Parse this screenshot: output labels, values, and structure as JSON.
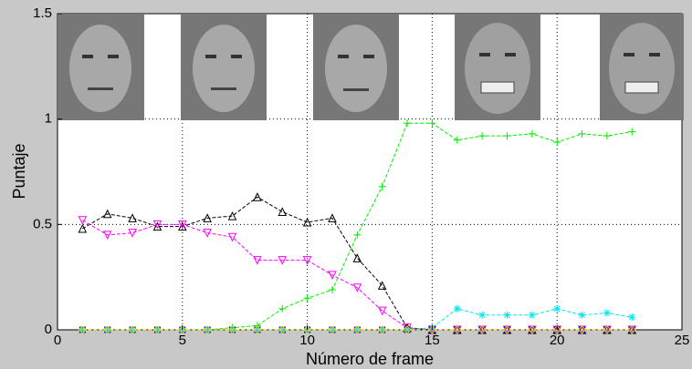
{
  "chart_data": {
    "type": "line",
    "x_label": "Número de frame",
    "y_label": "Puntaje",
    "x": [
      1,
      2,
      3,
      4,
      5,
      6,
      7,
      8,
      9,
      10,
      11,
      12,
      13,
      14,
      15,
      16,
      17,
      18,
      19,
      20,
      21,
      22,
      23
    ],
    "xlim": [
      0,
      25
    ],
    "xticks": [
      0,
      5,
      10,
      15,
      20,
      25
    ],
    "ylim": [
      0,
      1.5
    ],
    "yticks": [
      0,
      0.5,
      1,
      1.5
    ],
    "grid": true,
    "series": [
      {
        "color": "#000000",
        "marker": "triangle-up",
        "values": [
          0.48,
          0.55,
          0.53,
          0.49,
          0.49,
          0.53,
          0.54,
          0.63,
          0.56,
          0.51,
          0.53,
          0.34,
          0.21,
          0.01,
          0,
          0,
          0,
          0,
          0,
          0,
          0,
          0,
          0
        ]
      },
      {
        "color": "#ff00ff",
        "marker": "triangle-down",
        "values": [
          0.52,
          0.45,
          0.46,
          0.5,
          0.5,
          0.46,
          0.44,
          0.33,
          0.33,
          0.33,
          0.26,
          0.2,
          0.09,
          0.01,
          0,
          0,
          0,
          0,
          0,
          0,
          0,
          0,
          0
        ]
      },
      {
        "color": "#00ee00",
        "marker": "plus",
        "values": [
          0,
          0,
          0,
          0,
          0,
          0,
          0.01,
          0.02,
          0.1,
          0.15,
          0.19,
          0.45,
          0.68,
          0.98,
          0.98,
          0.9,
          0.92,
          0.92,
          0.93,
          0.89,
          0.93,
          0.92,
          0.94
        ]
      },
      {
        "color": "#00e5ee",
        "marker": "star",
        "values": [
          0,
          0,
          0,
          0,
          0,
          0,
          0,
          0,
          0,
          0,
          0,
          0,
          0,
          0,
          0.01,
          0.1,
          0.07,
          0.07,
          0.07,
          0.1,
          0.07,
          0.08,
          0.06
        ]
      },
      {
        "color": "#ff0000",
        "marker": "circle",
        "values": [
          0,
          0,
          0,
          0,
          0,
          0,
          0,
          0,
          0,
          0,
          0,
          0,
          0,
          0,
          0,
          0,
          0,
          0,
          0,
          0,
          0,
          0,
          0
        ]
      },
      {
        "color": "#0000ff",
        "marker": "square",
        "values": [
          0,
          0,
          0,
          0,
          0,
          0,
          0,
          0,
          0,
          0,
          0,
          0,
          0,
          0,
          0,
          0,
          0,
          0,
          0,
          0,
          0,
          0,
          0
        ]
      },
      {
        "color": "#dddd00",
        "marker": "diamond",
        "values": [
          0,
          0,
          0,
          0,
          0,
          0,
          0,
          0,
          0,
          0,
          0,
          0,
          0,
          0,
          0,
          0,
          0,
          0,
          0,
          0,
          0,
          0,
          0
        ]
      }
    ]
  }
}
